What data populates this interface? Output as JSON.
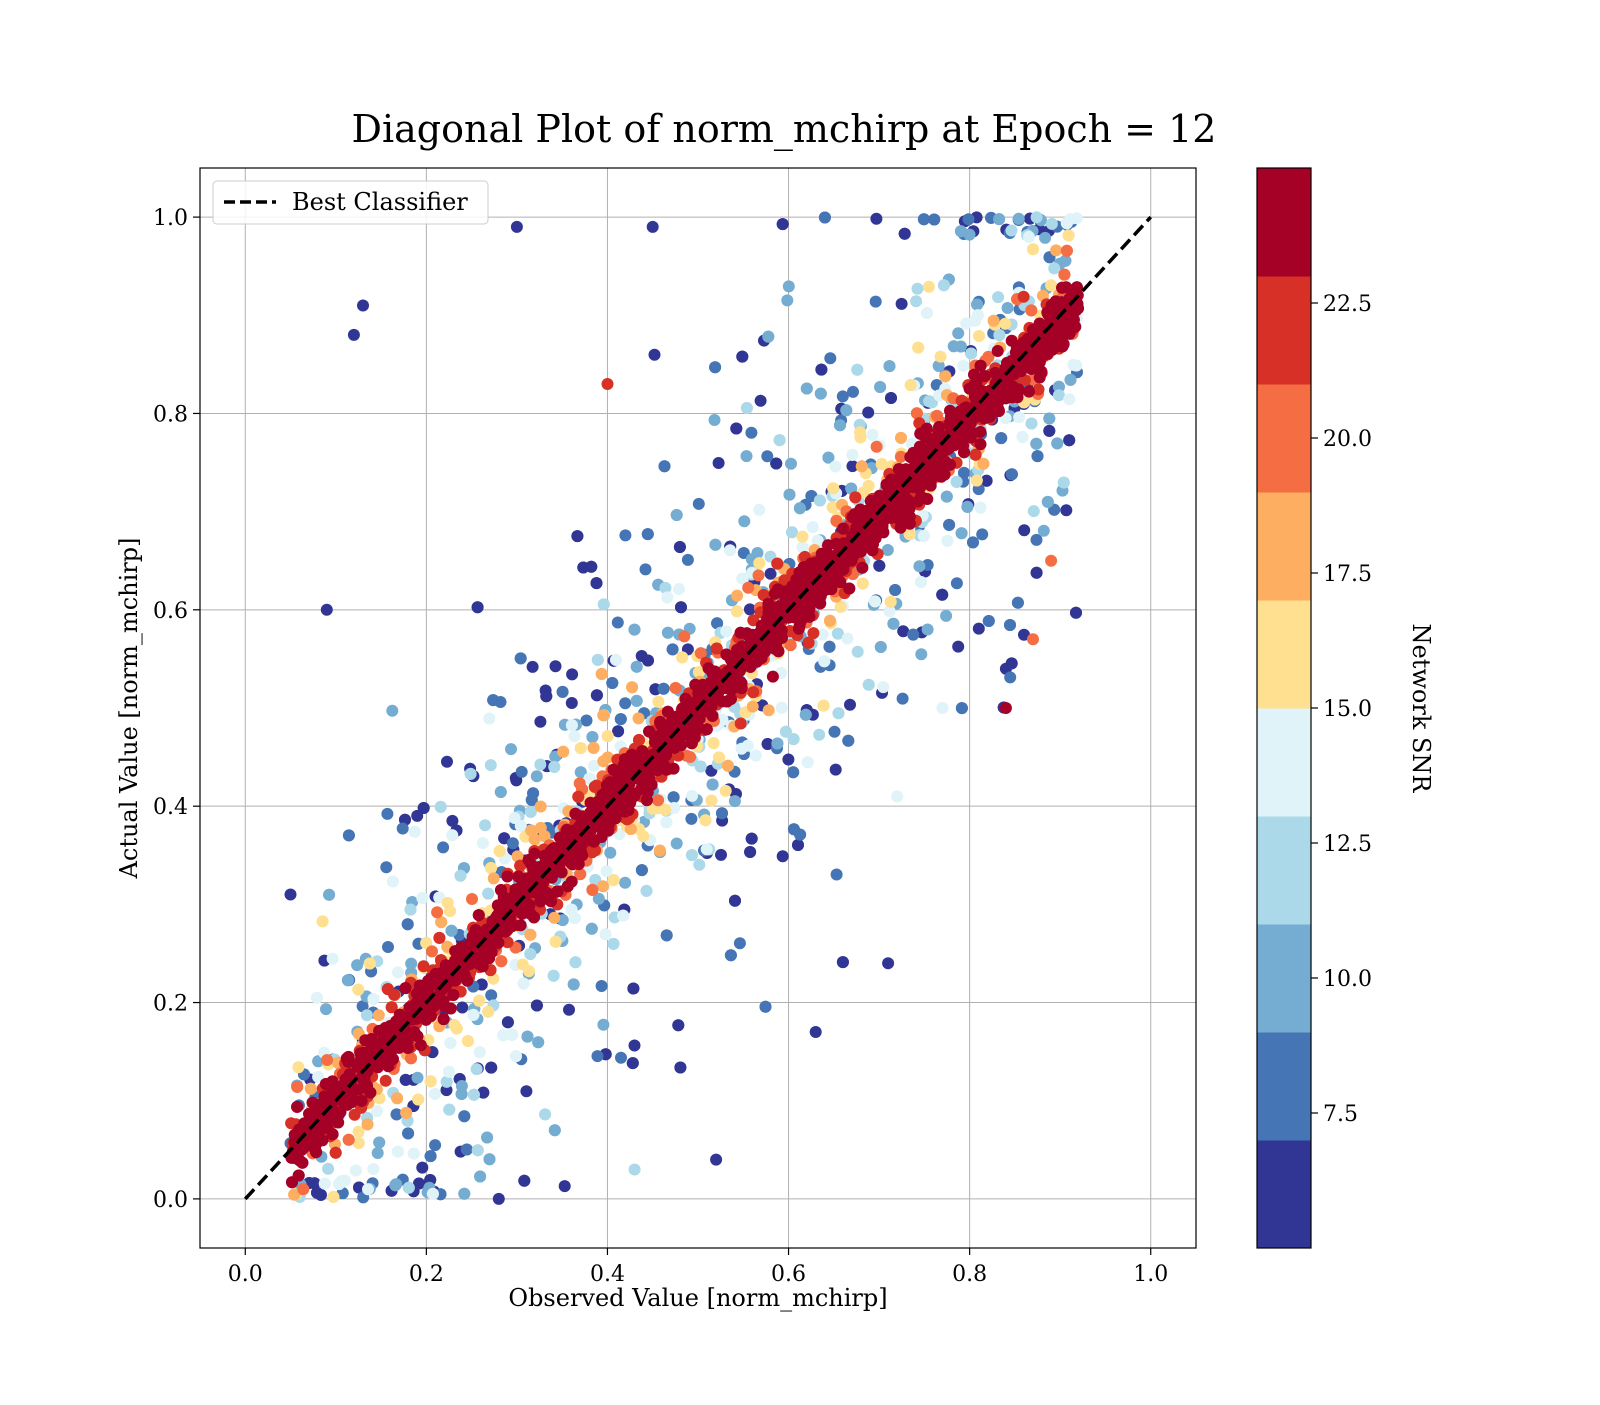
{
  "chart_data": {
    "type": "scatter",
    "title": "Diagonal Plot of norm_mchirp at Epoch = 12",
    "xlabel": "Observed Value [norm_mchirp]",
    "ylabel": "Actual Value [norm_mchirp]",
    "xlim": [
      -0.05,
      1.05
    ],
    "ylim": [
      -0.05,
      1.05
    ],
    "xticks": [
      "0.0",
      "0.2",
      "0.4",
      "0.6",
      "0.8",
      "1.0"
    ],
    "yticks": [
      "0.0",
      "0.2",
      "0.4",
      "0.6",
      "0.8",
      "1.0"
    ],
    "xtick_values": [
      0.0,
      0.2,
      0.4,
      0.6,
      0.8,
      1.0
    ],
    "ytick_values": [
      0.0,
      0.2,
      0.4,
      0.6,
      0.8,
      1.0
    ],
    "grid": true,
    "legend": {
      "position": "upper-left",
      "entries": [
        {
          "label": "Best Classifier",
          "style": "dashed-black"
        }
      ]
    },
    "reference_line": {
      "label": "Best Classifier",
      "from": [
        0.0,
        0.0
      ],
      "to": [
        1.0,
        1.0
      ],
      "color": "#000000"
    },
    "colorbar": {
      "label": "Network SNR",
      "vmin": 5.0,
      "vmax": 25.0,
      "ticks": [
        "7.5",
        "10.0",
        "12.5",
        "15.0",
        "17.5",
        "20.0",
        "22.5"
      ],
      "tick_values": [
        7.5,
        10.0,
        12.5,
        15.0,
        17.5,
        20.0,
        22.5
      ],
      "colors": [
        "#313695",
        "#4575b4",
        "#74add1",
        "#abd9e9",
        "#e0f3f8",
        "#fee090",
        "#fdae61",
        "#f46d43",
        "#d73027",
        "#a50026"
      ]
    },
    "series": [
      {
        "color_encoding": "Network SNR",
        "pattern": "dense band along the diagonal y≈x; high-SNR (red) points lie tightly on the diagonal, low-SNR (blue) points scatter widely",
        "points_sample": [
          {
            "x": 0.3,
            "y": 0.99,
            "snr": 6
          },
          {
            "x": 0.45,
            "y": 0.99,
            "snr": 6
          },
          {
            "x": 0.13,
            "y": 0.91,
            "snr": 6
          },
          {
            "x": 0.12,
            "y": 0.88,
            "snr": 6
          },
          {
            "x": 0.09,
            "y": 0.6,
            "snr": 6
          },
          {
            "x": 0.05,
            "y": 0.31,
            "snr": 6
          },
          {
            "x": 0.28,
            "y": 0.0,
            "snr": 6
          },
          {
            "x": 0.52,
            "y": 0.04,
            "snr": 6
          },
          {
            "x": 0.63,
            "y": 0.17,
            "snr": 6
          },
          {
            "x": 0.71,
            "y": 0.24,
            "snr": 6
          },
          {
            "x": 0.84,
            "y": 0.54,
            "snr": 6
          },
          {
            "x": 0.84,
            "y": 0.5,
            "snr": 24
          },
          {
            "x": 0.4,
            "y": 0.83,
            "snr": 22
          },
          {
            "x": 0.87,
            "y": 0.57,
            "snr": 20
          },
          {
            "x": 0.89,
            "y": 0.65,
            "snr": 20
          },
          {
            "x": 0.77,
            "y": 0.5,
            "snr": 13
          },
          {
            "x": 0.72,
            "y": 0.41,
            "snr": 14
          },
          {
            "x": 0.43,
            "y": 0.03,
            "snr": 11
          }
        ]
      }
    ]
  }
}
